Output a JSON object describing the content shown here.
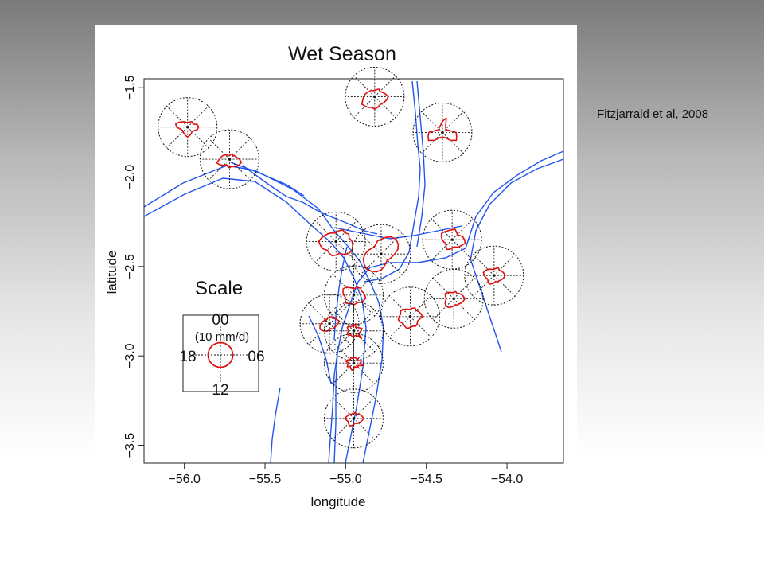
{
  "slide": {
    "credit": "Fitzjarrald et al, 2008"
  },
  "chart_data": {
    "type": "scatter",
    "title": "Wet Season",
    "xlabel": "longitude",
    "ylabel": "latitude",
    "xlim": [
      -56.25,
      -53.65
    ],
    "ylim": [
      -3.6,
      -1.45
    ],
    "xticks": [
      -56.0,
      -55.5,
      -55.0,
      -54.5,
      -54.0
    ],
    "xtick_labels": [
      "−56.0",
      "−55.5",
      "−55.0",
      "−54.5",
      "−54.0"
    ],
    "yticks": [
      -1.5,
      -2.0,
      -2.5,
      -3.0,
      -3.5
    ],
    "ytick_labels": [
      "−1.5",
      "−2.0",
      "−2.5",
      "−3.0",
      "−3.5"
    ],
    "grid": false,
    "colors": {
      "rivers": "#2255ee",
      "diurnal_curve": "#dd1111",
      "reference": "#111111"
    },
    "scale": {
      "title": "Scale",
      "hour_00": "00",
      "hour_06": "06",
      "hour_12": "12",
      "hour_18": "18",
      "unit": "(10 mm/d)",
      "reference_mm_per_day": 10
    },
    "stations": [
      {
        "lon": -55.98,
        "lat": -1.72,
        "r": [
          4,
          4,
          5,
          6,
          5,
          8,
          9,
          8,
          6,
          5,
          6,
          7,
          8,
          7,
          6,
          5,
          5,
          6,
          9,
          10,
          8,
          6,
          5,
          4
        ]
      },
      {
        "lon": -55.72,
        "lat": -1.9,
        "r": [
          3,
          4,
          5,
          4,
          5,
          6,
          8,
          10,
          9,
          8,
          7,
          6,
          7,
          6,
          5,
          7,
          9,
          11,
          8,
          7,
          6,
          5,
          4,
          3
        ]
      },
      {
        "lon": -54.82,
        "lat": -1.55,
        "r": [
          5,
          6,
          7,
          6,
          7,
          9,
          11,
          10,
          9,
          8,
          8,
          9,
          10,
          9,
          10,
          11,
          12,
          10,
          9,
          8,
          7,
          6,
          6,
          5
        ]
      },
      {
        "lon": -54.4,
        "lat": -1.75,
        "r": [
          9,
          12,
          5,
          4,
          4,
          6,
          11,
          12,
          13,
          9,
          5,
          4,
          5,
          4,
          5,
          9,
          13,
          12,
          11,
          6,
          4,
          4,
          5,
          6
        ]
      },
      {
        "lon": -55.06,
        "lat": -2.36,
        "r": [
          7,
          9,
          11,
          10,
          12,
          11,
          13,
          14,
          15,
          14,
          12,
          10,
          11,
          12,
          11,
          10,
          12,
          13,
          14,
          12,
          10,
          9,
          8,
          7
        ]
      },
      {
        "lon": -54.78,
        "lat": -2.43,
        "r": [
          12,
          14,
          16,
          17,
          16,
          14,
          11,
          9,
          8,
          7,
          8,
          10,
          13,
          15,
          16,
          17,
          16,
          15,
          13,
          11,
          9,
          8,
          9,
          11
        ]
      },
      {
        "lon": -54.34,
        "lat": -2.35,
        "r": [
          8,
          9,
          7,
          6,
          7,
          9,
          10,
          11,
          9,
          8,
          7,
          6,
          7,
          8,
          9,
          7,
          6,
          7,
          8,
          9,
          10,
          9,
          8,
          8
        ]
      },
      {
        "lon": -54.08,
        "lat": -2.55,
        "r": [
          5,
          6,
          7,
          6,
          7,
          8,
          9,
          8,
          7,
          6,
          6,
          5,
          6,
          7,
          8,
          7,
          6,
          7,
          8,
          9,
          8,
          7,
          6,
          5
        ]
      },
      {
        "lon": -54.95,
        "lat": -2.66,
        "r": [
          5,
          6,
          7,
          8,
          7,
          8,
          9,
          10,
          9,
          8,
          7,
          7,
          8,
          7,
          8,
          9,
          8,
          7,
          8,
          9,
          10,
          9,
          7,
          6
        ]
      },
      {
        "lon": -54.6,
        "lat": -2.78,
        "r": [
          6,
          7,
          8,
          7,
          8,
          9,
          10,
          8,
          7,
          8,
          9,
          8,
          9,
          10,
          9,
          8,
          9,
          10,
          9,
          8,
          9,
          8,
          7,
          6
        ]
      },
      {
        "lon": -54.33,
        "lat": -2.68,
        "r": [
          5,
          6,
          5,
          6,
          7,
          8,
          9,
          8,
          7,
          6,
          6,
          5,
          6,
          7,
          8,
          9,
          8,
          7,
          6,
          7,
          8,
          7,
          6,
          5
        ]
      },
      {
        "lon": -55.1,
        "lat": -2.82,
        "r": [
          5,
          6,
          5,
          6,
          7,
          8,
          7,
          6,
          5,
          5,
          5,
          4,
          5,
          6,
          7,
          8,
          9,
          8,
          7,
          6,
          5,
          5,
          4,
          5
        ]
      },
      {
        "lon": -54.95,
        "lat": -2.86,
        "r": [
          4,
          6,
          3,
          4,
          5,
          7,
          6,
          5,
          4,
          9,
          4,
          4,
          5,
          5,
          4,
          5,
          6,
          5,
          4,
          5,
          6,
          5,
          4,
          4
        ]
      },
      {
        "lon": -54.95,
        "lat": -3.04,
        "r": [
          4,
          5,
          4,
          5,
          4,
          7,
          5,
          8,
          4,
          5,
          4,
          3,
          5,
          6,
          5,
          4,
          6,
          5,
          4,
          7,
          5,
          4,
          5,
          4
        ]
      },
      {
        "lon": -54.95,
        "lat": -3.35,
        "r": [
          4,
          5,
          4,
          5,
          6,
          7,
          8,
          7,
          6,
          5,
          5,
          4,
          5,
          6,
          7,
          6,
          5,
          6,
          7,
          6,
          5,
          5,
          4,
          4
        ]
      }
    ]
  }
}
